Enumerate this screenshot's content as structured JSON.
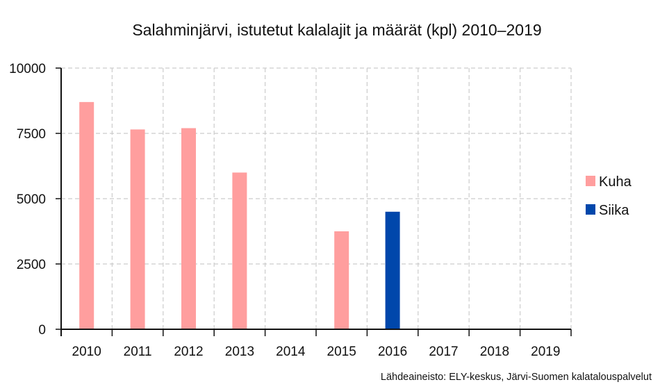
{
  "chart_data": {
    "type": "bar",
    "title": "Salahminjärvi, istutetut kalalajit ja määrät (kpl) 2010–2019",
    "xlabel": "",
    "ylabel": "",
    "categories": [
      "2010",
      "2011",
      "2012",
      "2013",
      "2014",
      "2015",
      "2016",
      "2017",
      "2018",
      "2019"
    ],
    "series": [
      {
        "name": "Kuha",
        "color": "#ff9e9e",
        "values": [
          8700,
          7650,
          7700,
          6000,
          0,
          3750,
          0,
          0,
          0,
          0
        ]
      },
      {
        "name": "Siika",
        "color": "#0047ab",
        "values": [
          0,
          0,
          0,
          0,
          0,
          0,
          4500,
          0,
          0,
          0
        ]
      }
    ],
    "ylim": [
      0,
      10000
    ],
    "yticks": [
      0,
      2500,
      5000,
      7500,
      10000
    ],
    "grid": true,
    "legend": "right",
    "source": "Lähdeaineisto: ELY-keskus, Järvi-Suomen kalatalouspalvelut"
  }
}
